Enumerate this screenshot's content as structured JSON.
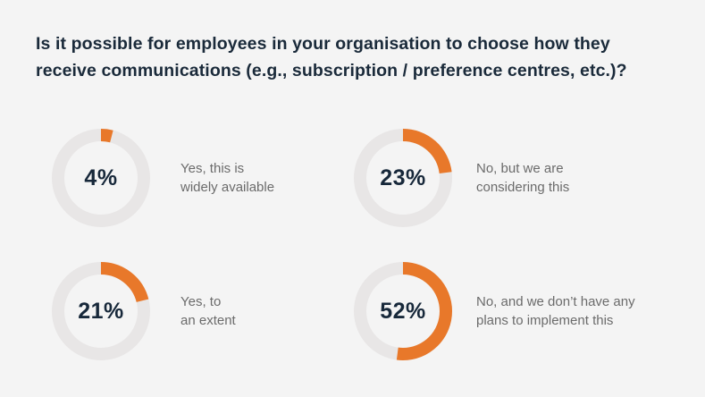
{
  "title_lines": [
    "Is it possible for employees in your organisation to choose how they",
    "receive communications (e.g., subscription / preference centres, etc.)?"
  ],
  "colors": {
    "accent": "#e8782a",
    "track": "#e8e6e6",
    "text_dark": "#17283a",
    "text_label": "#6b6b6b",
    "background": "#f4f4f4"
  },
  "chart_data": {
    "type": "pie",
    "variant": "donut",
    "items": [
      {
        "value_label": "4%",
        "value": 4,
        "label_lines": [
          "Yes, this is",
          "widely available"
        ]
      },
      {
        "value_label": "23%",
        "value": 23,
        "label_lines": [
          "No, but we are",
          "considering this"
        ]
      },
      {
        "value_label": "21%",
        "value": 21,
        "label_lines": [
          "Yes, to",
          "an extent"
        ]
      },
      {
        "value_label": "52%",
        "value": 52,
        "label_lines": [
          "No, and we don’t have any",
          "plans to implement this"
        ]
      }
    ]
  }
}
